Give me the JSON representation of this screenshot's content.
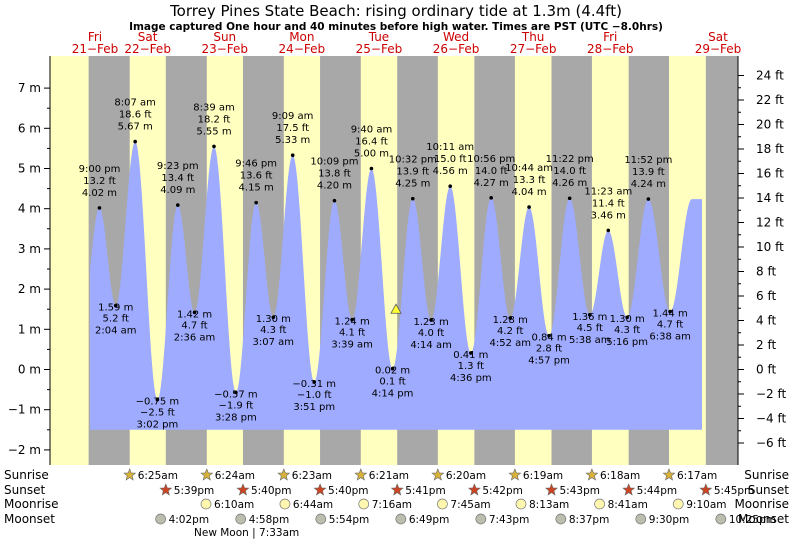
{
  "title": "Torrey Pines State Beach: rising  ordinary tide at 1.3m (4.4ft)",
  "subtitle": "Image captured One hour and 40 minutes before high water. Times are PST (UTC −8.0hrs)",
  "colors": {
    "day": "#ffffc0",
    "night": "#a8a8a8",
    "water": "#9eabff",
    "day_label": "#cc0000"
  },
  "chart_data": {
    "type": "area",
    "y_left_unit": "m",
    "y_right_unit": "ft",
    "ylim_m": [
      -2.25,
      7.55
    ],
    "left_ticks": [
      "−2 m",
      "−1 m",
      "0 m",
      "1 m",
      "2 m",
      "3 m",
      "4 m",
      "5 m",
      "6 m",
      "7 m"
    ],
    "right_ticks": [
      "−6 ft",
      "−4 ft",
      "−2 ft",
      "0 ft",
      "2 ft",
      "4 ft",
      "6 ft",
      "8 ft",
      "10 ft",
      "12 ft",
      "14 ft",
      "16 ft",
      "18 ft",
      "20 ft",
      "22 ft",
      "24 ft"
    ],
    "days": [
      {
        "dow": "Fri",
        "date": "21−Feb"
      },
      {
        "dow": "Sat",
        "date": "22−Feb"
      },
      {
        "dow": "Sun",
        "date": "23−Feb"
      },
      {
        "dow": "Mon",
        "date": "24−Feb"
      },
      {
        "dow": "Tue",
        "date": "25−Feb"
      },
      {
        "dow": "Wed",
        "date": "26−Feb"
      },
      {
        "dow": "Thu",
        "date": "27−Feb"
      },
      {
        "dow": "Fri",
        "date": "28−Feb"
      },
      {
        "dow": "Sat",
        "date": "29−Feb"
      }
    ],
    "extremes": [
      {
        "type": "high",
        "time": "9:00 pm",
        "ft": "13.2 ft",
        "m": "4.02 m",
        "day": 0
      },
      {
        "type": "low",
        "time": "2:04 am",
        "ft": "5.2 ft",
        "m": "1.59 m",
        "day": 1
      },
      {
        "type": "high",
        "time": "8:07 am",
        "ft": "18.6 ft",
        "m": "5.67 m",
        "day": 1
      },
      {
        "type": "low",
        "time": "3:02 pm",
        "ft": "−2.5 ft",
        "m": "−0.75 m",
        "day": 1
      },
      {
        "type": "high",
        "time": "9:23 pm",
        "ft": "13.4 ft",
        "m": "4.09 m",
        "day": 1
      },
      {
        "type": "low",
        "time": "2:36 am",
        "ft": "4.7 ft",
        "m": "1.42 m",
        "day": 2
      },
      {
        "type": "high",
        "time": "8:39 am",
        "ft": "18.2 ft",
        "m": "5.55 m",
        "day": 2
      },
      {
        "type": "low",
        "time": "3:28 pm",
        "ft": "−1.9 ft",
        "m": "−0.57 m",
        "day": 2
      },
      {
        "type": "high",
        "time": "9:46 pm",
        "ft": "13.6 ft",
        "m": "4.15 m",
        "day": 2
      },
      {
        "type": "low",
        "time": "3:07 am",
        "ft": "4.3 ft",
        "m": "1.30 m",
        "day": 3
      },
      {
        "type": "high",
        "time": "9:09 am",
        "ft": "17.5 ft",
        "m": "5.33 m",
        "day": 3
      },
      {
        "type": "low",
        "time": "3:51 pm",
        "ft": "−1.0 ft",
        "m": "−0.31 m",
        "day": 3
      },
      {
        "type": "high",
        "time": "10:09 pm",
        "ft": "13.8 ft",
        "m": "4.20 m",
        "day": 3
      },
      {
        "type": "low",
        "time": "3:39 am",
        "ft": "4.1 ft",
        "m": "1.24 m",
        "day": 4
      },
      {
        "type": "high",
        "time": "9:40 am",
        "ft": "16.4 ft",
        "m": "5.00 m",
        "day": 4
      },
      {
        "type": "low",
        "time": "4:14 pm",
        "ft": "0.1 ft",
        "m": "0.02 m",
        "day": 4
      },
      {
        "type": "high",
        "time": "10:32 pm",
        "ft": "13.9 ft",
        "m": "4.25 m",
        "day": 4
      },
      {
        "type": "low",
        "time": "4:14 am",
        "ft": "4.0 ft",
        "m": "1.23 m",
        "day": 5
      },
      {
        "type": "high",
        "time": "10:11 am",
        "ft": "15.0 ft",
        "m": "4.56 m",
        "day": 5
      },
      {
        "type": "low",
        "time": "4:36 pm",
        "ft": "1.3 ft",
        "m": "0.41 m",
        "day": 5
      },
      {
        "type": "high",
        "time": "10:56 pm",
        "ft": "14.0 ft",
        "m": "4.27 m",
        "day": 5
      },
      {
        "type": "low",
        "time": "4:52 am",
        "ft": "4.2 ft",
        "m": "1.28 m",
        "day": 6
      },
      {
        "type": "high",
        "time": "10:44 am",
        "ft": "13.3 ft",
        "m": "4.04 m",
        "day": 6
      },
      {
        "type": "low",
        "time": "4:57 pm",
        "ft": "2.8 ft",
        "m": "0.84 m",
        "day": 6
      },
      {
        "type": "high",
        "time": "11:22 pm",
        "ft": "14.0 ft",
        "m": "4.26 m",
        "day": 6
      },
      {
        "type": "low",
        "time": "5:38 am",
        "ft": "4.5 ft",
        "m": "1.36 m",
        "day": 7
      },
      {
        "type": "high",
        "time": "11:23 am",
        "ft": "11.4 ft",
        "m": "3.46 m",
        "day": 7
      },
      {
        "type": "low",
        "time": "5:16 pm",
        "ft": "4.3 ft",
        "m": "1.30 m",
        "day": 7
      },
      {
        "type": "high",
        "time": "11:52 pm",
        "ft": "13.9 ft",
        "m": "4.24 m",
        "day": 7
      },
      {
        "type": "low",
        "time": "6:38 am",
        "ft": "4.7 ft",
        "m": "1.44 m",
        "day": 8
      }
    ],
    "current_level_m": 1.3,
    "rows": {
      "labels": [
        "Sunrise",
        "Sunset",
        "Moonrise",
        "Moonset"
      ],
      "sunrise": [
        "6:25am",
        "6:24am",
        "6:23am",
        "6:21am",
        "6:20am",
        "6:19am",
        "6:18am",
        "6:17am"
      ],
      "sunset": [
        "5:39pm",
        "5:40pm",
        "5:40pm",
        "5:41pm",
        "5:42pm",
        "5:43pm",
        "5:44pm",
        "5:45pm"
      ],
      "moonrise": [
        "6:10am",
        "6:44am",
        "7:16am",
        "7:45am",
        "8:13am",
        "8:41am",
        "9:10am"
      ],
      "moonset": [
        "4:02pm",
        "4:58pm",
        "5:54pm",
        "6:49pm",
        "7:43pm",
        "8:37pm",
        "9:30pm",
        "10:25pm"
      ],
      "new_moon": "New Moon | 7:33am"
    }
  }
}
